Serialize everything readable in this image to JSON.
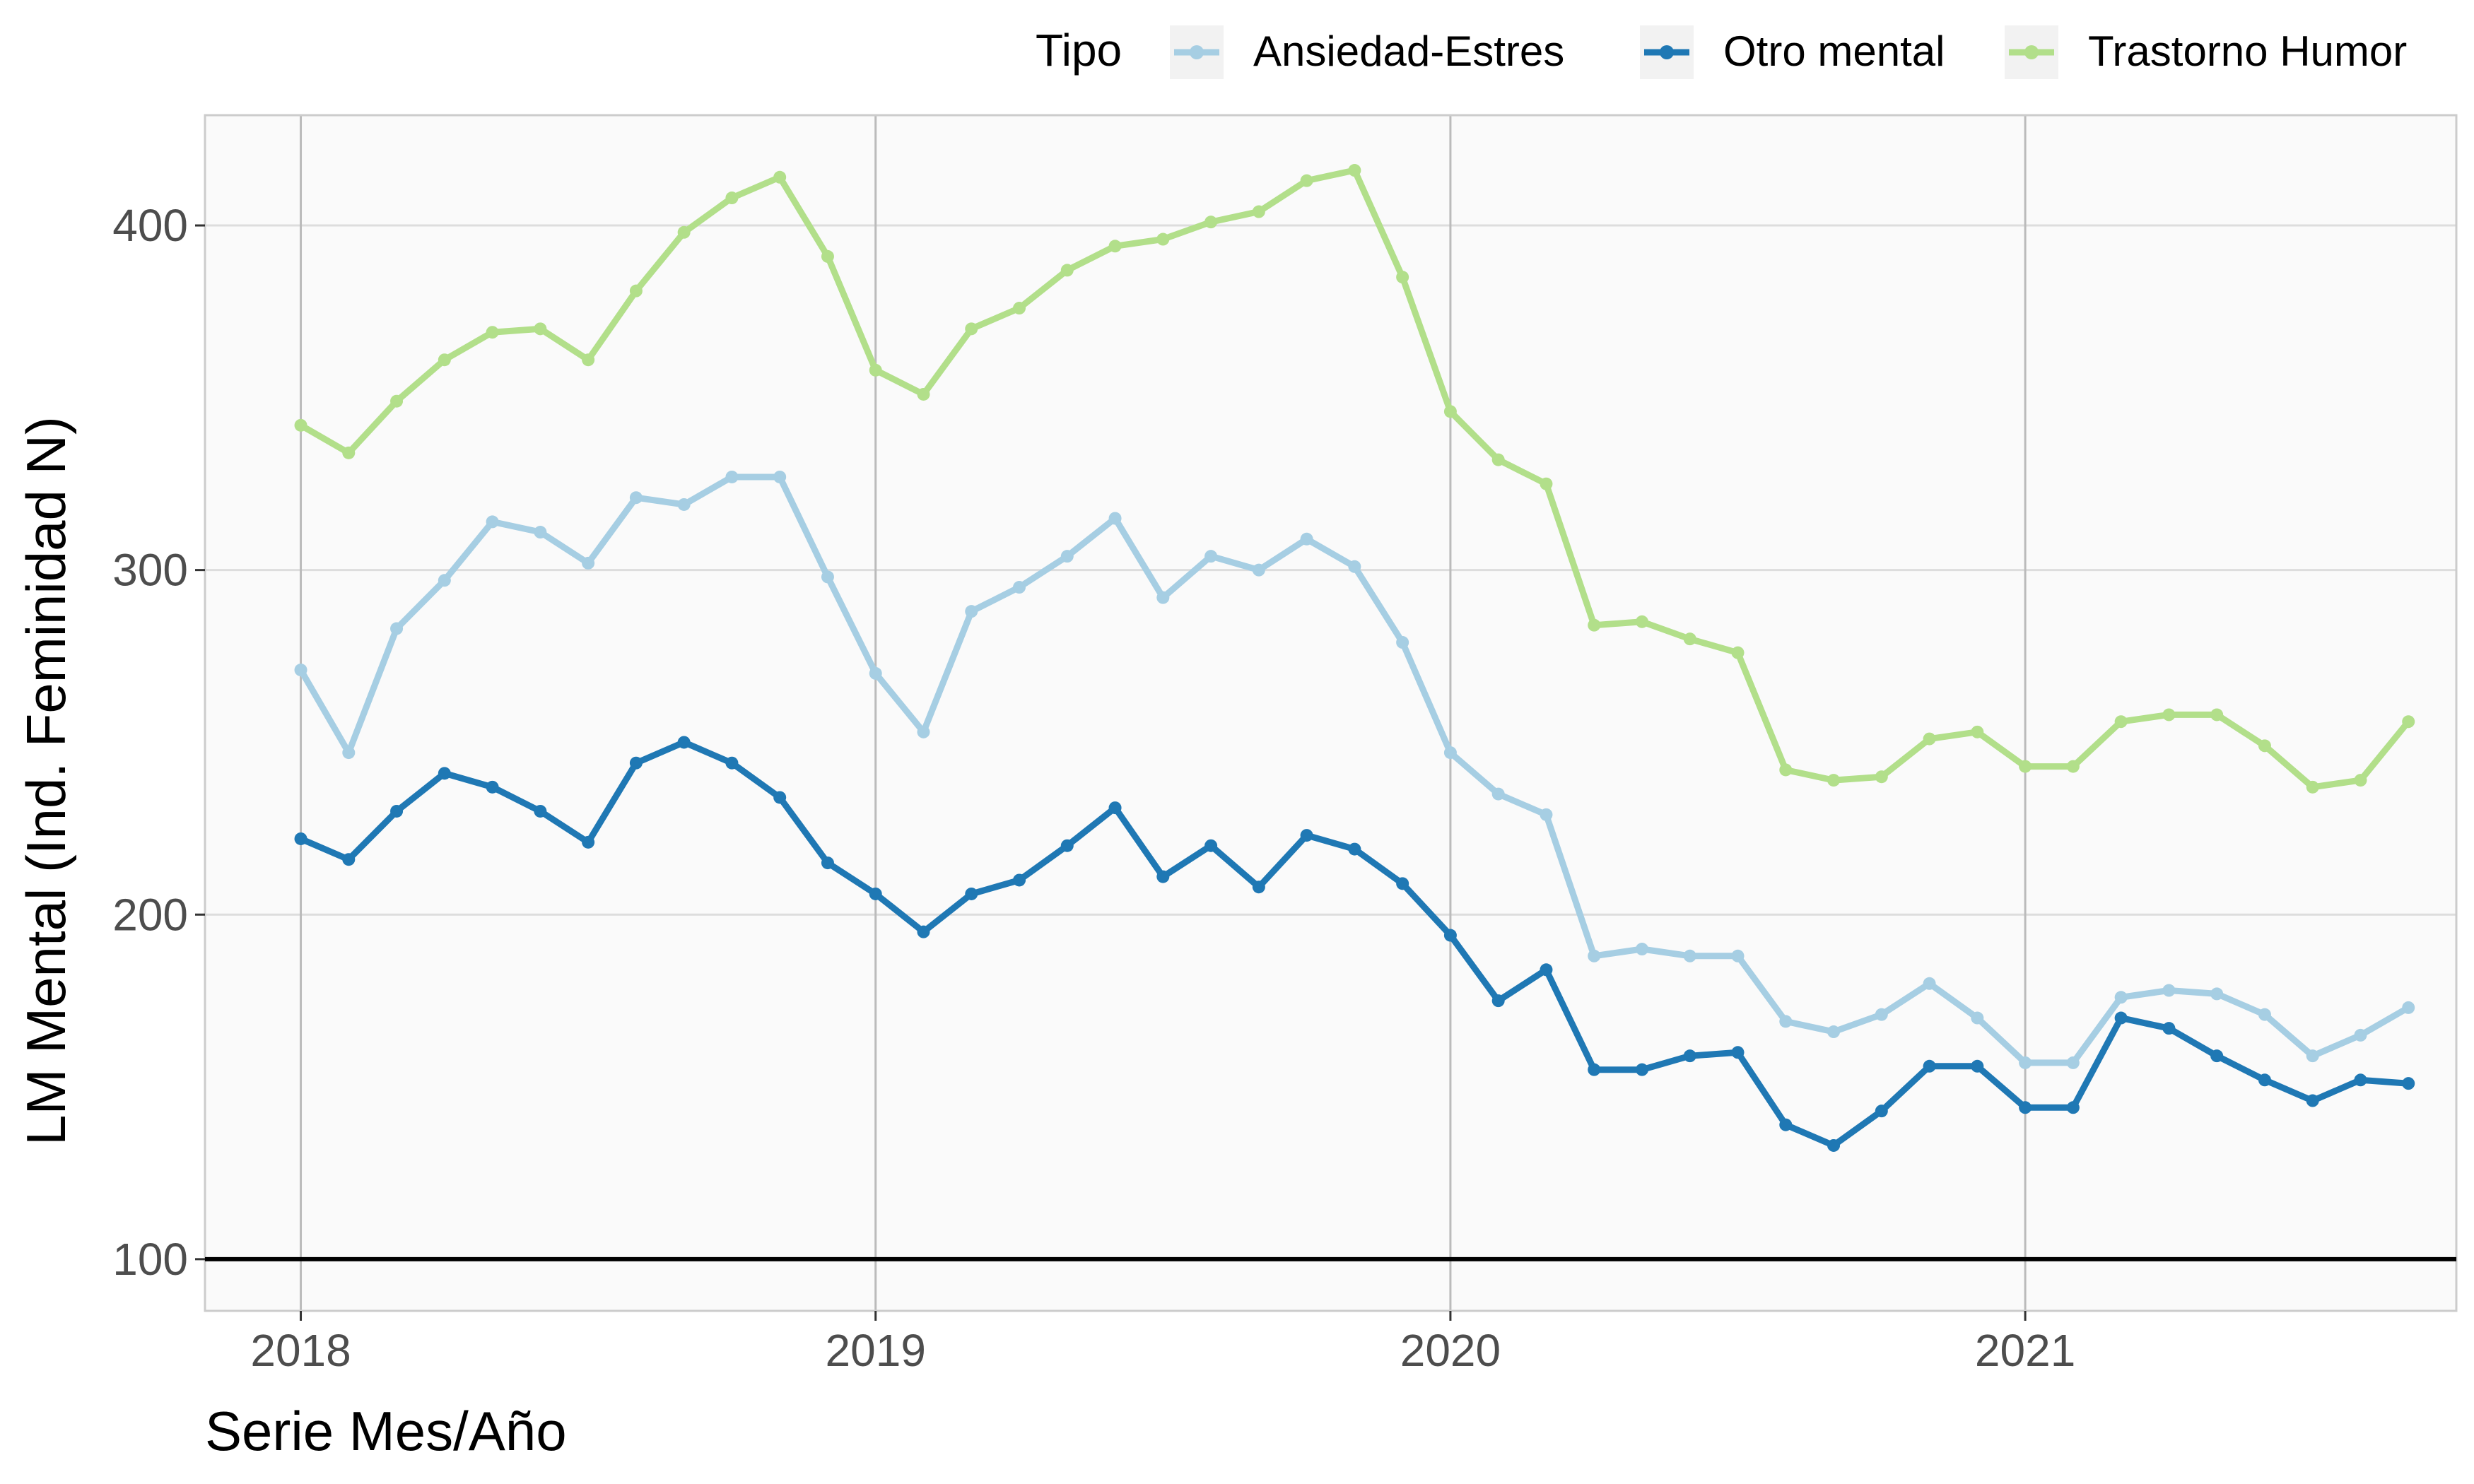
{
  "chart_data": {
    "type": "line",
    "title": "",
    "xlabel": "Serie Mes/Año",
    "ylabel": "LM Mental (Ind. Feminidad N)",
    "x_ticks": [
      "2018",
      "2019",
      "2020",
      "2021"
    ],
    "y_ticks": [
      "100",
      "200",
      "300",
      "400"
    ],
    "xlim": [
      "2017-11",
      "2021-10"
    ],
    "ylim": [
      85,
      432
    ],
    "grid": true,
    "reference_line": {
      "y": 100,
      "color": "#000000"
    },
    "legend": {
      "title": "Tipo",
      "placement": "top",
      "entries": [
        "Ansiedad-Estres",
        "Otro mental",
        "Trastorno Humor"
      ]
    },
    "x": [
      "2018-01",
      "2018-02",
      "2018-03",
      "2018-04",
      "2018-05",
      "2018-06",
      "2018-07",
      "2018-08",
      "2018-09",
      "2018-10",
      "2018-11",
      "2018-12",
      "2019-01",
      "2019-02",
      "2019-03",
      "2019-04",
      "2019-05",
      "2019-06",
      "2019-07",
      "2019-08",
      "2019-09",
      "2019-10",
      "2019-11",
      "2019-12",
      "2020-01",
      "2020-02",
      "2020-03",
      "2020-04",
      "2020-05",
      "2020-06",
      "2020-07",
      "2020-08",
      "2020-09",
      "2020-10",
      "2020-11",
      "2020-12",
      "2021-01",
      "2021-02",
      "2021-03",
      "2021-04",
      "2021-05",
      "2021-06",
      "2021-07",
      "2021-08",
      "2021-09"
    ],
    "series": [
      {
        "name": "Ansiedad-Estres",
        "color": "#a6cee3",
        "values": [
          271,
          247,
          283,
          297,
          314,
          311,
          302,
          321,
          319,
          327,
          327,
          298,
          270,
          253,
          288,
          295,
          304,
          315,
          292,
          304,
          300,
          309,
          301,
          279,
          247,
          235,
          229,
          188,
          190,
          188,
          188,
          169,
          166,
          171,
          180,
          170,
          157,
          157,
          176,
          178,
          177,
          171,
          159,
          165,
          173
        ]
      },
      {
        "name": "Otro mental",
        "color": "#1f78b4",
        "values": [
          222,
          216,
          230,
          241,
          237,
          230,
          221,
          244,
          250,
          244,
          234,
          215,
          206,
          195,
          206,
          210,
          220,
          231,
          211,
          220,
          208,
          223,
          219,
          209,
          194,
          175,
          184,
          155,
          155,
          159,
          160,
          139,
          133,
          143,
          156,
          156,
          144,
          144,
          170,
          167,
          159,
          152,
          146,
          152,
          151
        ]
      },
      {
        "name": "Trastorno Humor",
        "color": "#b2df8a",
        "values": [
          342,
          334,
          349,
          361,
          369,
          370,
          361,
          381,
          398,
          408,
          414,
          391,
          358,
          351,
          370,
          376,
          387,
          394,
          396,
          401,
          404,
          413,
          416,
          385,
          346,
          332,
          325,
          284,
          285,
          280,
          276,
          242,
          239,
          240,
          251,
          253,
          243,
          243,
          256,
          258,
          258,
          249,
          237,
          239,
          256
        ]
      }
    ]
  }
}
